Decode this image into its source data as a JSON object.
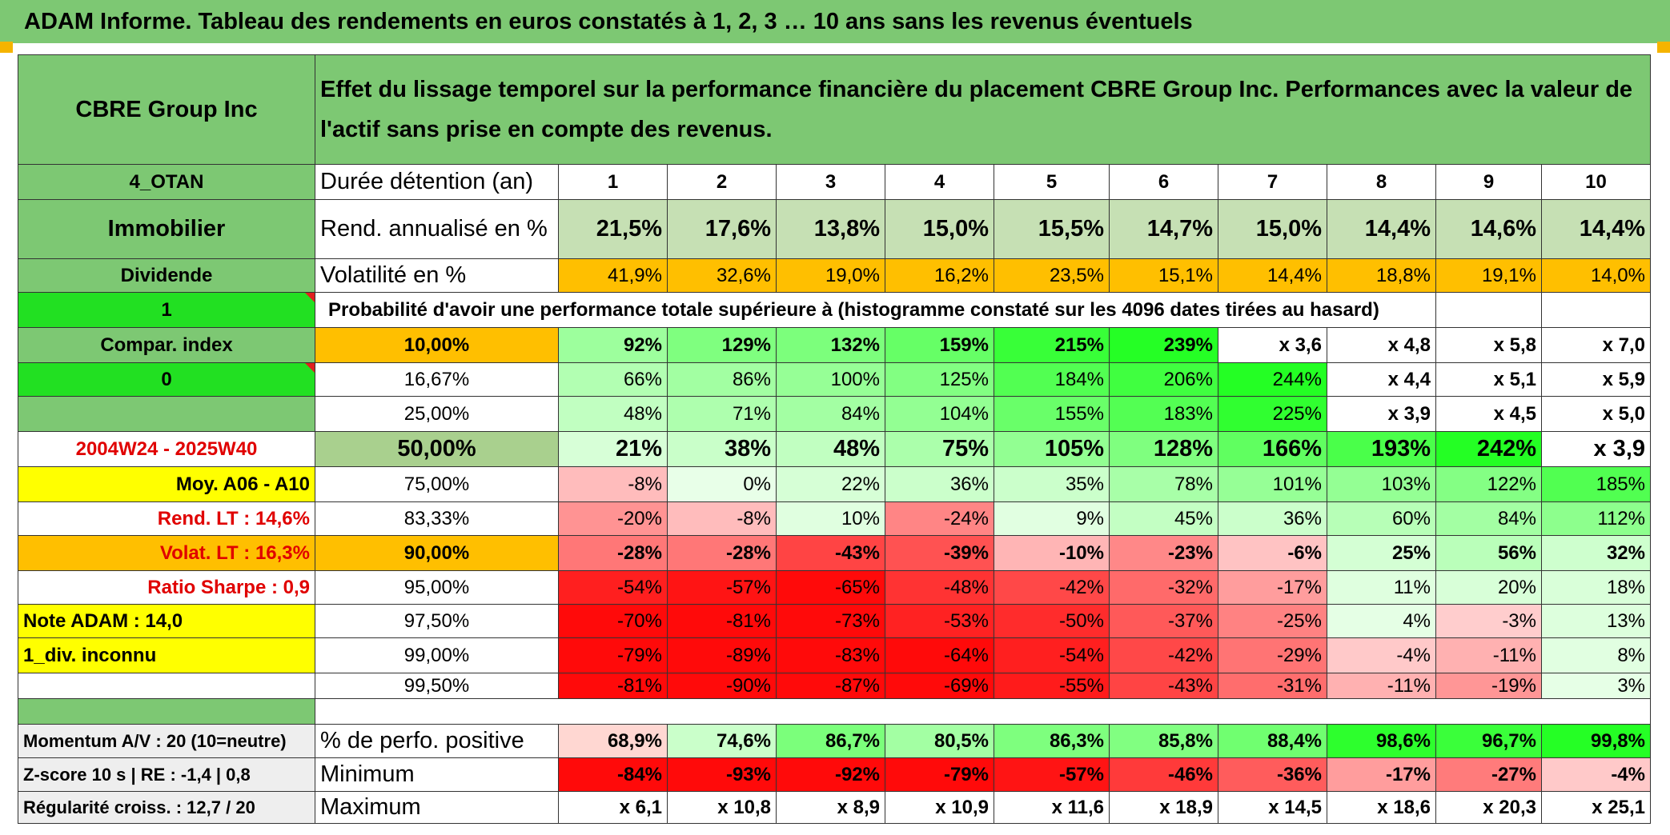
{
  "title": "ADAM Informe. Tableau des rendements en euros constatés à 1, 2, 3 … 10 ans sans les revenus éventuels",
  "company": "CBRE Group Inc",
  "description": "Effet du lissage temporel sur la performance financière du placement CBRE Group Inc. Performances avec la valeur de l'actif sans prise en compte des revenus.",
  "left_labels": {
    "code": "4_OTAN",
    "sector": "Immobilier",
    "dividend": "Dividende",
    "flag1": "1",
    "compar": "Compar. index",
    "flag0": "0",
    "period": "2004W24 - 2025W40",
    "moy": "Moy. A06 - A10",
    "rend_lt": "Rend. LT :   14,6%",
    "volat_lt": "Volat. LT :   16,3%",
    "sharpe": "Ratio Sharpe :   0,9",
    "note": "Note ADAM : 14,0",
    "div": "1_div. inconnu",
    "momentum": "Momentum A/V : 20 (10=neutre)",
    "zscore": "Z-score 10 s | RE : -1,4 | 0,8",
    "regularite": "Régularité croiss. : 12,7 / 20"
  },
  "durations": {
    "label": "Durée détention (an)",
    "years": [
      "1",
      "2",
      "3",
      "4",
      "5",
      "6",
      "7",
      "8",
      "9",
      "10"
    ]
  },
  "rend": {
    "label": "Rend. annualisé en %",
    "values": [
      "21,5%",
      "17,6%",
      "13,8%",
      "15,0%",
      "15,5%",
      "14,7%",
      "15,0%",
      "14,4%",
      "14,6%",
      "14,4%"
    ]
  },
  "vol": {
    "label": "Volatilité en %",
    "values": [
      "41,9%",
      "32,6%",
      "19,0%",
      "16,2%",
      "23,5%",
      "15,1%",
      "14,4%",
      "18,8%",
      "19,1%",
      "14,0%"
    ]
  },
  "prob_header": "Probabilité d'avoir une performance totale supérieure à (histogramme constaté sur les 4096 dates tirées au hasard)",
  "prob_rows": [
    {
      "p": "10,00%",
      "values": [
        "92%",
        "129%",
        "132%",
        "159%",
        "215%",
        "239%",
        "x 3,6",
        "x 4,8",
        "x 5,8",
        "x 7,0"
      ]
    },
    {
      "p": "16,67%",
      "values": [
        "66%",
        "86%",
        "100%",
        "125%",
        "184%",
        "206%",
        "244%",
        "x 4,4",
        "x 5,1",
        "x 5,9"
      ]
    },
    {
      "p": "25,00%",
      "values": [
        "48%",
        "71%",
        "84%",
        "104%",
        "155%",
        "183%",
        "225%",
        "x 3,9",
        "x 4,5",
        "x 5,0"
      ]
    },
    {
      "p": "50,00%",
      "values": [
        "21%",
        "38%",
        "48%",
        "75%",
        "105%",
        "128%",
        "166%",
        "193%",
        "242%",
        "x 3,9"
      ]
    },
    {
      "p": "75,00%",
      "values": [
        "-8%",
        "0%",
        "22%",
        "36%",
        "35%",
        "78%",
        "101%",
        "103%",
        "122%",
        "185%"
      ]
    },
    {
      "p": "83,33%",
      "values": [
        "-20%",
        "-8%",
        "10%",
        "-24%",
        "9%",
        "45%",
        "36%",
        "60%",
        "84%",
        "112%"
      ]
    },
    {
      "p": "90,00%",
      "values": [
        "-28%",
        "-28%",
        "-43%",
        "-39%",
        "-10%",
        "-23%",
        "-6%",
        "25%",
        "56%",
        "32%"
      ]
    },
    {
      "p": "95,00%",
      "values": [
        "-54%",
        "-57%",
        "-65%",
        "-48%",
        "-42%",
        "-32%",
        "-17%",
        "11%",
        "20%",
        "18%"
      ]
    },
    {
      "p": "97,50%",
      "values": [
        "-70%",
        "-81%",
        "-73%",
        "-53%",
        "-50%",
        "-37%",
        "-25%",
        "4%",
        "-3%",
        "13%"
      ]
    },
    {
      "p": "99,00%",
      "values": [
        "-79%",
        "-89%",
        "-83%",
        "-64%",
        "-54%",
        "-42%",
        "-29%",
        "-4%",
        "-11%",
        "8%"
      ]
    },
    {
      "p": "99,50%",
      "values": [
        "-81%",
        "-90%",
        "-87%",
        "-69%",
        "-55%",
        "-43%",
        "-31%",
        "-11%",
        "-19%",
        "3%"
      ]
    }
  ],
  "stats": [
    {
      "label": "% de perfo. positive",
      "values": [
        "68,9%",
        "74,6%",
        "86,7%",
        "80,5%",
        "86,3%",
        "85,8%",
        "88,4%",
        "98,6%",
        "96,7%",
        "99,8%"
      ]
    },
    {
      "label": "Minimum",
      "values": [
        "-84%",
        "-93%",
        "-92%",
        "-79%",
        "-57%",
        "-46%",
        "-36%",
        "-17%",
        "-27%",
        "-4%"
      ]
    },
    {
      "label": "Maximum",
      "values": [
        "x 6,1",
        "x 10,8",
        "x 8,9",
        "x 10,9",
        "x 11,6",
        "x 18,9",
        "x 14,5",
        "x 18,6",
        "x 20,3",
        "x 25,1"
      ]
    }
  ],
  "colors": {
    "header_green": "#7dc873",
    "bright_green": "#22e022",
    "orange": "#ffbf00",
    "yellow": "#ffff00",
    "red_text": "#e00000",
    "rend_bg": "#c6e0b4",
    "median_bg": "#a9d08e"
  }
}
